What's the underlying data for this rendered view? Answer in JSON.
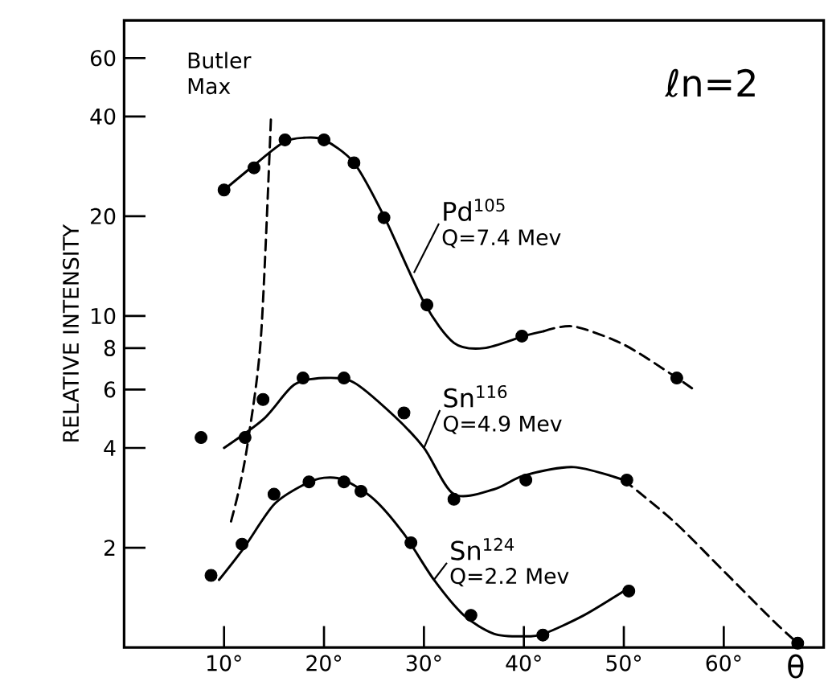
{
  "chart_data": {
    "type": "scatter",
    "title": "ℓn=2",
    "xlabel": "θ",
    "ylabel": "RELATIVE INTENSITY",
    "xlim": [
      0,
      70
    ],
    "ylim": [
      1,
      78
    ],
    "log": "y",
    "xticks": [
      {
        "value": 10,
        "label": "10°"
      },
      {
        "value": 20,
        "label": "20°"
      },
      {
        "value": 30,
        "label": "30°"
      },
      {
        "value": 40,
        "label": "40°"
      },
      {
        "value": 50,
        "label": "50°"
      },
      {
        "value": 60,
        "label": "60°"
      }
    ],
    "yticks": [
      2,
      4,
      6,
      8,
      10,
      20,
      40,
      60
    ],
    "annotations": [
      "Butler Max",
      {
        "text": "Q=7.4 Mev",
        "x": 29,
        "y": 13.5
      },
      {
        "text": "Q=4.9 Mev",
        "x": 30,
        "y": 4
      },
      {
        "text": "Q=2.2 Mev",
        "x": 31,
        "y": 1.6
      }
    ],
    "series": [
      {
        "name": "Pd$^{105}$",
        "type": "scatter",
        "marker": "circle",
        "color": "#000000",
        "x": [
          10,
          13,
          16.1,
          20,
          23,
          26,
          30.3,
          39.8,
          55.3
        ],
        "values": [
          24,
          28,
          34,
          34,
          29,
          19.8,
          10.8,
          8.7,
          6.5
        ]
      },
      {
        "name": "Sn$^{116}$",
        "type": "scatter",
        "marker": "circle",
        "color": "#000000",
        "x": [
          7.7,
          12.1,
          13.9,
          17.9,
          22,
          28,
          33,
          40.2,
          50.3,
          67.4
        ],
        "values": [
          4.3,
          4.3,
          5.6,
          6.5,
          6.5,
          5.1,
          2.8,
          3.2,
          3.2,
          1.03
        ]
      },
      {
        "name": "Sn$^{124}$",
        "type": "scatter",
        "marker": "circle",
        "color": "#000000",
        "x": [
          8.7,
          11.8,
          15,
          18.5,
          22,
          23.7,
          28.7,
          34.7,
          41.9,
          50.5
        ],
        "values": [
          1.65,
          2.05,
          2.9,
          3.16,
          3.16,
          2.96,
          2.07,
          1.25,
          1.09,
          1.48
        ]
      },
      {
        "type": "line",
        "line_style": "solid",
        "color": "#000000",
        "x": [
          10,
          13,
          16,
          18,
          20,
          23,
          26,
          30,
          33,
          36,
          40,
          42
        ],
        "values": [
          24,
          28.5,
          33.5,
          34.5,
          34,
          29,
          20,
          11,
          8.3,
          8,
          8.7,
          9
        ]
      },
      {
        "type": "line",
        "line_style": "dashed",
        "color": "#000000",
        "x": [
          42,
          45,
          50,
          55,
          57
        ],
        "values": [
          9,
          9.3,
          8.2,
          6.6,
          6
        ]
      },
      {
        "type": "line",
        "line_style": "solid",
        "color": "#000000",
        "x": [
          10,
          14,
          17,
          20,
          23,
          27,
          30,
          33,
          37,
          40,
          45,
          50
        ],
        "values": [
          4,
          4.9,
          6.2,
          6.5,
          6.3,
          5,
          4,
          2.9,
          3,
          3.3,
          3.5,
          3.2
        ]
      },
      {
        "type": "line",
        "line_style": "dashed",
        "color": "#000000",
        "x": [
          50,
          55,
          60,
          65,
          67.4
        ],
        "values": [
          3.2,
          2.4,
          1.7,
          1.2,
          1.03
        ]
      },
      {
        "type": "line",
        "line_style": "solid",
        "color": "#000000",
        "x": [
          9.5,
          12,
          15,
          18,
          20,
          22,
          25,
          28,
          31,
          34,
          37,
          40,
          42,
          46,
          50
        ],
        "values": [
          1.6,
          2,
          2.7,
          3.1,
          3.25,
          3.2,
          2.8,
          2.2,
          1.6,
          1.25,
          1.1,
          1.08,
          1.1,
          1.25,
          1.48
        ]
      },
      {
        "type": "line",
        "line_style": "dashed",
        "color": "#000000",
        "x": [
          10.7,
          11.5,
          12.4,
          13.7,
          14.7
        ],
        "values": [
          2.4,
          3,
          4.2,
          8.7,
          40
        ]
      }
    ]
  }
}
